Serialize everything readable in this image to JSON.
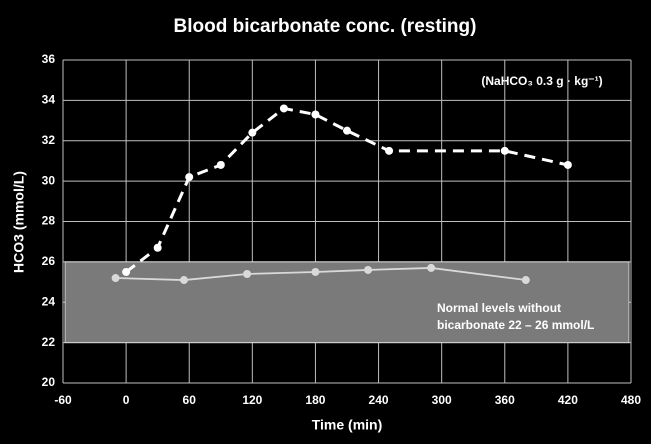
{
  "chart_data": {
    "type": "line",
    "title": "Blood bicarbonate conc. (resting)",
    "x_label": "Time (min)",
    "y_label": "HCO3 (mmol/L)",
    "annotation": "(NaHCO₃ 0.3 g · kg⁻¹)",
    "band_label": [
      "Normal levels without",
      "bicarbonate 22 – 26 mmol/L"
    ],
    "normal_band": [
      22,
      26
    ],
    "band_color": "#7a7a7a",
    "xlim": [
      -60,
      480
    ],
    "xticks": [
      -60,
      0,
      60,
      120,
      180,
      240,
      300,
      360,
      420,
      480
    ],
    "ylim": [
      20,
      36
    ],
    "yticks": [
      20,
      22,
      24,
      26,
      28,
      30,
      32,
      34,
      36
    ],
    "grid": true,
    "series": [
      {
        "color": "#ffffff",
        "dashed": true,
        "x": [
          0,
          30,
          60,
          90,
          120,
          150,
          180,
          210,
          250,
          360,
          420
        ],
        "values": [
          25.5,
          26.7,
          30.2,
          30.8,
          32.4,
          33.6,
          33.3,
          32.5,
          31.5,
          31.5,
          30.8
        ]
      },
      {
        "color": "#d9d9d9",
        "dashed": false,
        "x": [
          -10,
          55,
          115,
          180,
          230,
          290,
          380
        ],
        "values": [
          25.2,
          25.1,
          25.4,
          25.5,
          25.6,
          25.7,
          25.1
        ]
      }
    ]
  }
}
